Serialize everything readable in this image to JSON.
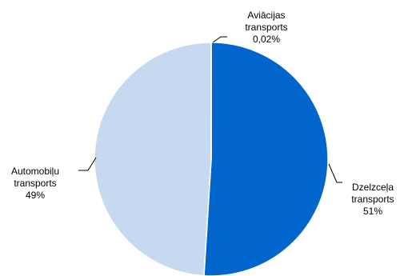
{
  "chart_data": {
    "type": "pie",
    "title": "",
    "start_angle_deg": 0,
    "direction": "clockwise",
    "slices": [
      {
        "name_lines": [
          "Dzelzceļa",
          "transports"
        ],
        "value": 51,
        "label": "51%",
        "color": "#0066CC"
      },
      {
        "name_lines": [
          "Automobiļu",
          "transports"
        ],
        "value": 49,
        "label": "49%",
        "color": "#C6D9F1"
      },
      {
        "name_lines": [
          "Aviācijas",
          "transports"
        ],
        "value": 0.02,
        "label": "0,02%",
        "color": "#C6D9F1"
      }
    ]
  }
}
